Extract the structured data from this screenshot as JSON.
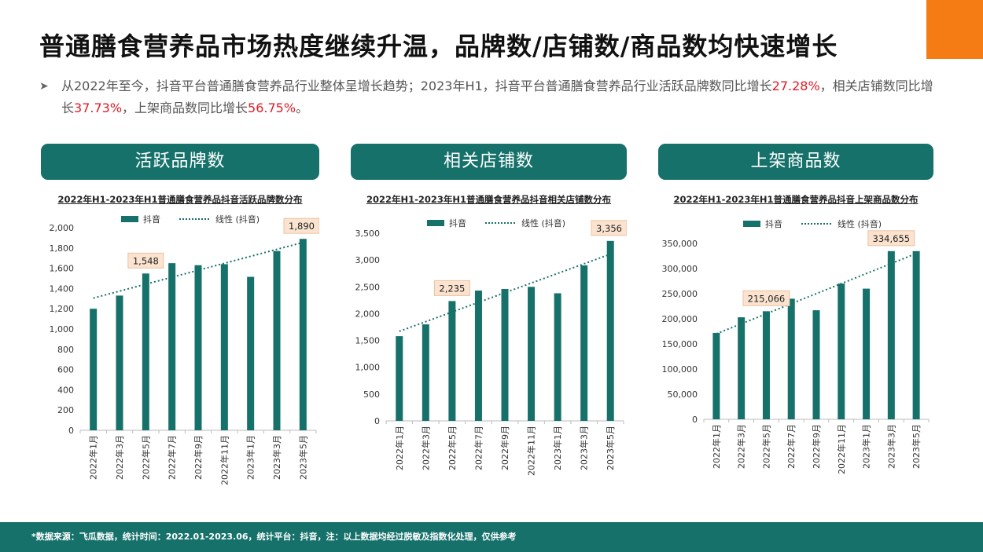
{
  "page": {
    "title": "普通膳食营养品市场热度继续升温，品牌数/店铺数/商品数均快速增长",
    "summary": {
      "part1": "从2022年至今，抖音平台普通膳食营养品行业整体呈增长趋势；2023年H1，抖音平台普通膳食营养品行业活跃品牌数同比增长",
      "brand_growth": "27.28%",
      "part2": "，相关店铺数同比增长",
      "store_growth": "37.73%",
      "part3": "，上架商品数同比增长",
      "product_growth": "56.75%",
      "part4": "。"
    },
    "footer": "*数据来源：飞瓜数据，统计时间：2022.01-2023.06，统计平台：抖音，注：以上数据均经过脱敏及指数化处理，仅供参考",
    "accent_color": "#16716b",
    "highlight_color": "#e01b24",
    "corner_color": "#f57c14"
  },
  "panels": [
    {
      "header": "活跃品牌数",
      "chart_title": "2022年H1-2023年H1普通膳食营养品抖音活跃品牌数分布"
    },
    {
      "header": "相关店铺数",
      "chart_title": "2022年H1-2023年H1普通膳食营养品抖音相关店铺数分布"
    },
    {
      "header": "上架商品数",
      "chart_title": "2022年H1-2023年H1普通膳食营养品抖音上架商品数分布"
    }
  ],
  "chart_data": [
    {
      "type": "bar",
      "title": "2022年H1-2023年H1普通膳食营养品抖音活跃品牌数分布",
      "categories": [
        "2022年1月",
        "2022年3月",
        "2022年5月",
        "2022年7月",
        "2022年9月",
        "2022年11月",
        "2023年1月",
        "2023年3月",
        "2023年5月"
      ],
      "series": [
        {
          "name": "抖音",
          "values": [
            1200,
            1330,
            1548,
            1650,
            1630,
            1640,
            1515,
            1770,
            1890
          ]
        }
      ],
      "trendline": {
        "name": "线性 (抖音)",
        "start": 1305,
        "end": 1855
      },
      "data_labels": [
        {
          "index": 2,
          "label": "1,548"
        },
        {
          "index": 8,
          "label": "1,890"
        }
      ],
      "ylim": [
        0,
        2000
      ],
      "yticks": [
        0,
        200,
        400,
        600,
        800,
        1000,
        1200,
        1400,
        1600,
        1800,
        2000
      ],
      "ytick_labels": [
        "0",
        "200",
        "400",
        "600",
        "800",
        "1,000",
        "1,200",
        "1,400",
        "1,600",
        "1,800",
        "2,000"
      ],
      "legend": "top",
      "bar_color": "#16716b"
    },
    {
      "type": "bar",
      "title": "2022年H1-2023年H1普通膳食营养品抖音相关店铺数分布",
      "categories": [
        "2022年1月",
        "2022年3月",
        "2022年5月",
        "2022年7月",
        "2022年9月",
        "2022年11月",
        "2023年1月",
        "2023年3月",
        "2023年5月"
      ],
      "series": [
        {
          "name": "抖音",
          "values": [
            1580,
            1800,
            2235,
            2430,
            2460,
            2500,
            2380,
            2900,
            3356
          ]
        }
      ],
      "trendline": {
        "name": "线性 (抖音)",
        "start": 1670,
        "end": 3110
      },
      "data_labels": [
        {
          "index": 2,
          "label": "2,235"
        },
        {
          "index": 8,
          "label": "3,356"
        }
      ],
      "ylim": [
        0,
        3500
      ],
      "yticks": [
        0,
        500,
        1000,
        1500,
        2000,
        2500,
        3000,
        3500
      ],
      "ytick_labels": [
        "0",
        "500",
        "1,000",
        "1,500",
        "2,000",
        "2,500",
        "3,000",
        "3,500"
      ],
      "legend": "top",
      "bar_color": "#16716b"
    },
    {
      "type": "bar",
      "title": "2022年H1-2023年H1普通膳食营养品抖音上架商品数分布",
      "categories": [
        "2022年1月",
        "2022年3月",
        "2022年5月",
        "2022年7月",
        "2022年9月",
        "2022年11月",
        "2023年1月",
        "2023年3月",
        "2023年5月"
      ],
      "series": [
        {
          "name": "抖音",
          "values": [
            172000,
            203000,
            215066,
            240000,
            217000,
            270000,
            260000,
            334655,
            334655
          ]
        }
      ],
      "trendline": {
        "name": "线性 (抖音)",
        "start": 170000,
        "end": 330000
      },
      "data_labels": [
        {
          "index": 2,
          "label": "215,066"
        },
        {
          "index": 7,
          "label": "334,655"
        }
      ],
      "ylim": [
        0,
        350000
      ],
      "yticks": [
        0,
        50000,
        100000,
        150000,
        200000,
        250000,
        300000,
        350000
      ],
      "ytick_labels": [
        "0",
        "50,000",
        "100,000",
        "150,000",
        "200,000",
        "250,000",
        "300,000",
        "350,000"
      ],
      "legend": "top",
      "bar_color": "#16716b"
    }
  ]
}
